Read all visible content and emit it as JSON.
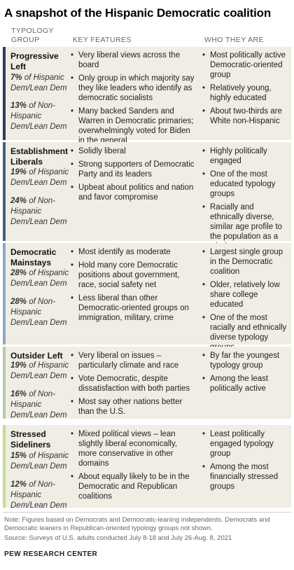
{
  "title": "A snapshot of the Hispanic Democratic coalition",
  "headers": {
    "group": "TYPOLOGY GROUP",
    "features": "KEY FEATURES",
    "who": "WHO THEY ARE"
  },
  "colors": {
    "row_bg": "#efede4",
    "progressive_left": "#2a3f55",
    "establishment_liberals": "#46607a",
    "democratic_mainstays": "#8ea7c3",
    "outsider_left": "#bcc7a9",
    "stressed_sideliners": "#c9d98a"
  },
  "groups": [
    {
      "name": "Progressive Left",
      "hispanic_pct": "7%",
      "hispanic_label": "of Hispanic Dem/Lean Dem",
      "nonhispanic_pct": "13%",
      "nonhispanic_label": "of Non-Hispanic Dem/Lean Dem",
      "features": [
        "Very liberal views across the board",
        "Only group in which majority say they like leaders who identify as democratic socialists",
        "Many backed Sanders and Warren in Democratic primaries; overwhelmingly voted for Biden in the general"
      ],
      "who": [
        "Most politically active Democratic-oriented group",
        "Relatively young, highly educated",
        "About two-thirds are White non-Hispanic"
      ]
    },
    {
      "name": "Establishment Liberals",
      "hispanic_pct": "19%",
      "hispanic_label": "of Hispanic Dem/Lean Dem",
      "nonhispanic_pct": "24%",
      "nonhispanic_label": "of Non-Hispanic Dem/Lean Dem",
      "features": [
        "Solidly liberal",
        "Strong supporters of Democratic Party and its leaders",
        "Upbeat about politics and nation and favor compromise"
      ],
      "who": [
        "Highly politically engaged",
        "One of the most educated typology groups",
        "Racially and ethnically diverse, similar age profile to the population as a whole"
      ]
    },
    {
      "name": "Democratic Mainstays",
      "hispanic_pct": "28%",
      "hispanic_label": "of Hispanic Dem/Lean Dem",
      "nonhispanic_pct": "28%",
      "nonhispanic_label": "of Non-Hispanic Dem/Lean Dem",
      "features": [
        "Most identify as moderate",
        "Hold many core Democratic positions about government, race, social safety net",
        "Less liberal than other Democratic-oriented groups on immigration, military, crime"
      ],
      "who": [
        "Largest single group in the Democratic coalition",
        "Older, relatively low share college educated",
        "One of the most racially and ethnically diverse typology groups"
      ]
    },
    {
      "name": "Outsider Left",
      "hispanic_pct": "19%",
      "hispanic_label": "of Hispanic Dem/Lean Dem",
      "nonhispanic_pct": "16%",
      "nonhispanic_label": "of Non-Hispanic Dem/Lean Dem",
      "features": [
        "Very liberal on issues – particularly climate and race",
        "Vote Democratic, despite dissatisfaction with both parties",
        "Most say other nations better than the U.S."
      ],
      "who": [
        "By far the youngest typology group",
        "Among the least politically active"
      ]
    },
    {
      "name": "Stressed Sideliners",
      "hispanic_pct": "15%",
      "hispanic_label": "of Hispanic Dem/Lean Dem",
      "nonhispanic_pct": "12%",
      "nonhispanic_label": "of Non-Hispanic Dem/Lean Dem",
      "features": [
        "Mixed political views – lean slightly liberal economically, more conservative in other domains",
        "About equally likely to be in the Democratic and Republican coalitions"
      ],
      "who": [
        "Least politically engaged typology group",
        "Among the most financially stressed groups"
      ]
    }
  ],
  "note": "Note: Figures based on Democrats and Democratic-leaning independents. Democrats and Democratic leaners in Republican-oriented typology groups not shown.",
  "source": "Source: Surveys of U.S. adults conducted July 8-18 and July 26-Aug. 8, 2021",
  "brand": "PEW RESEARCH CENTER"
}
